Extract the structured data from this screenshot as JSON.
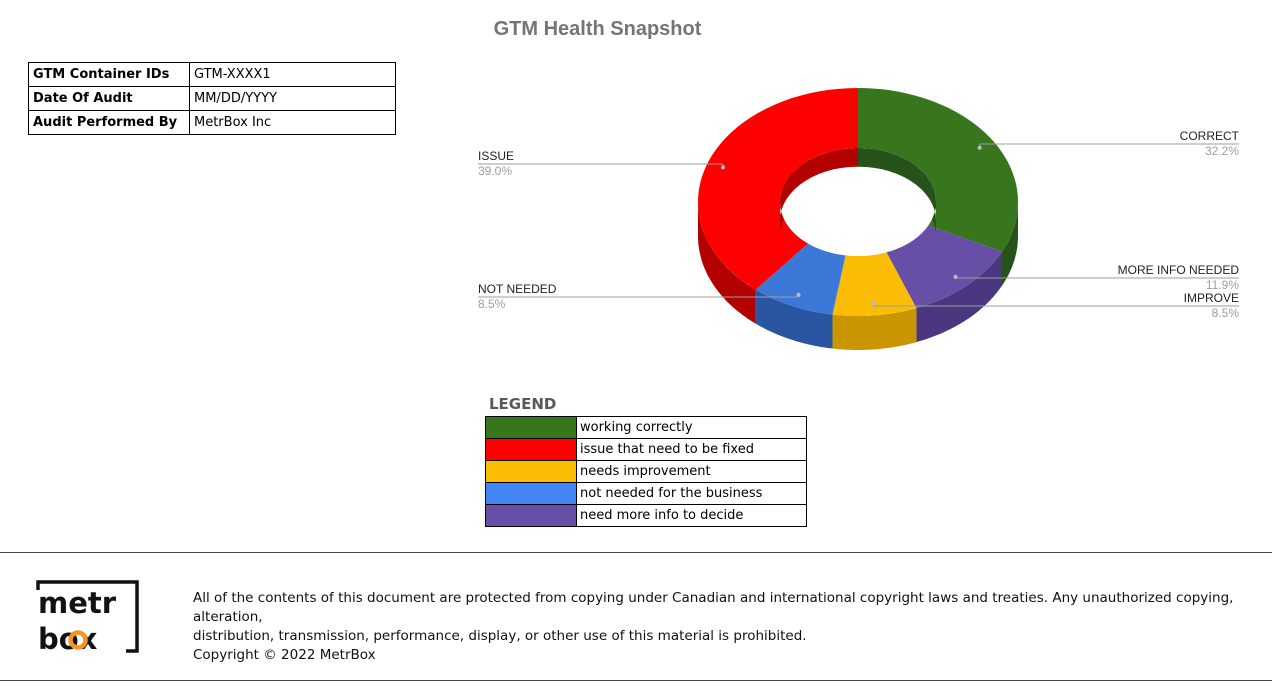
{
  "page": {
    "title": "GTM Health Snapshot"
  },
  "info_table": [
    {
      "key": "GTM Container IDs",
      "value": "GTM-XXXX1"
    },
    {
      "key": "Date Of Audit",
      "value": "MM/DD/YYYY"
    },
    {
      "key": "Audit Performed By",
      "value": "MetrBox Inc"
    }
  ],
  "chart_data": {
    "type": "pie",
    "style": "3d-donut",
    "title": "",
    "slices": [
      {
        "label": "CORRECT",
        "value": 32.2,
        "pct_label": "32.2%",
        "color": "#38761d",
        "side_color": "#27531a"
      },
      {
        "label": "MORE INFO NEEDED",
        "value": 11.9,
        "pct_label": "11.9%",
        "color": "#674ea7",
        "side_color": "#4a3780"
      },
      {
        "label": "IMPROVE",
        "value": 8.5,
        "pct_label": "8.5%",
        "color": "#fbbc04",
        "side_color": "#c99500"
      },
      {
        "label": "NOT NEEDED",
        "value": 8.5,
        "pct_label": "8.5%",
        "color": "#3c78d8",
        "side_color": "#2a55a0"
      },
      {
        "label": "ISSUE",
        "value": 39.0,
        "pct_label": "39.0%",
        "color": "#ff0000",
        "side_color": "#b30000"
      }
    ]
  },
  "legend": {
    "title": "LEGEND",
    "items": [
      {
        "color": "#38761d",
        "text": "working correctly"
      },
      {
        "color": "#ff0000",
        "text": "issue that need to be fixed"
      },
      {
        "color": "#fbbc04",
        "text": "needs improvement"
      },
      {
        "color": "#4285f4",
        "text": "not needed for the business"
      },
      {
        "color": "#674ea7",
        "text": "need more info to decide"
      }
    ]
  },
  "footer": {
    "logo_line1": "metr",
    "logo_line2": "box",
    "line1": "All of the contents of this document are protected from copying under Canadian and international copyright laws and treaties. Any unauthorized copying, alteration,",
    "line2": "distribution, transmission, performance, display, or other use of this material is prohibited.",
    "line3": "Copyright © 2022 MetrBox"
  }
}
